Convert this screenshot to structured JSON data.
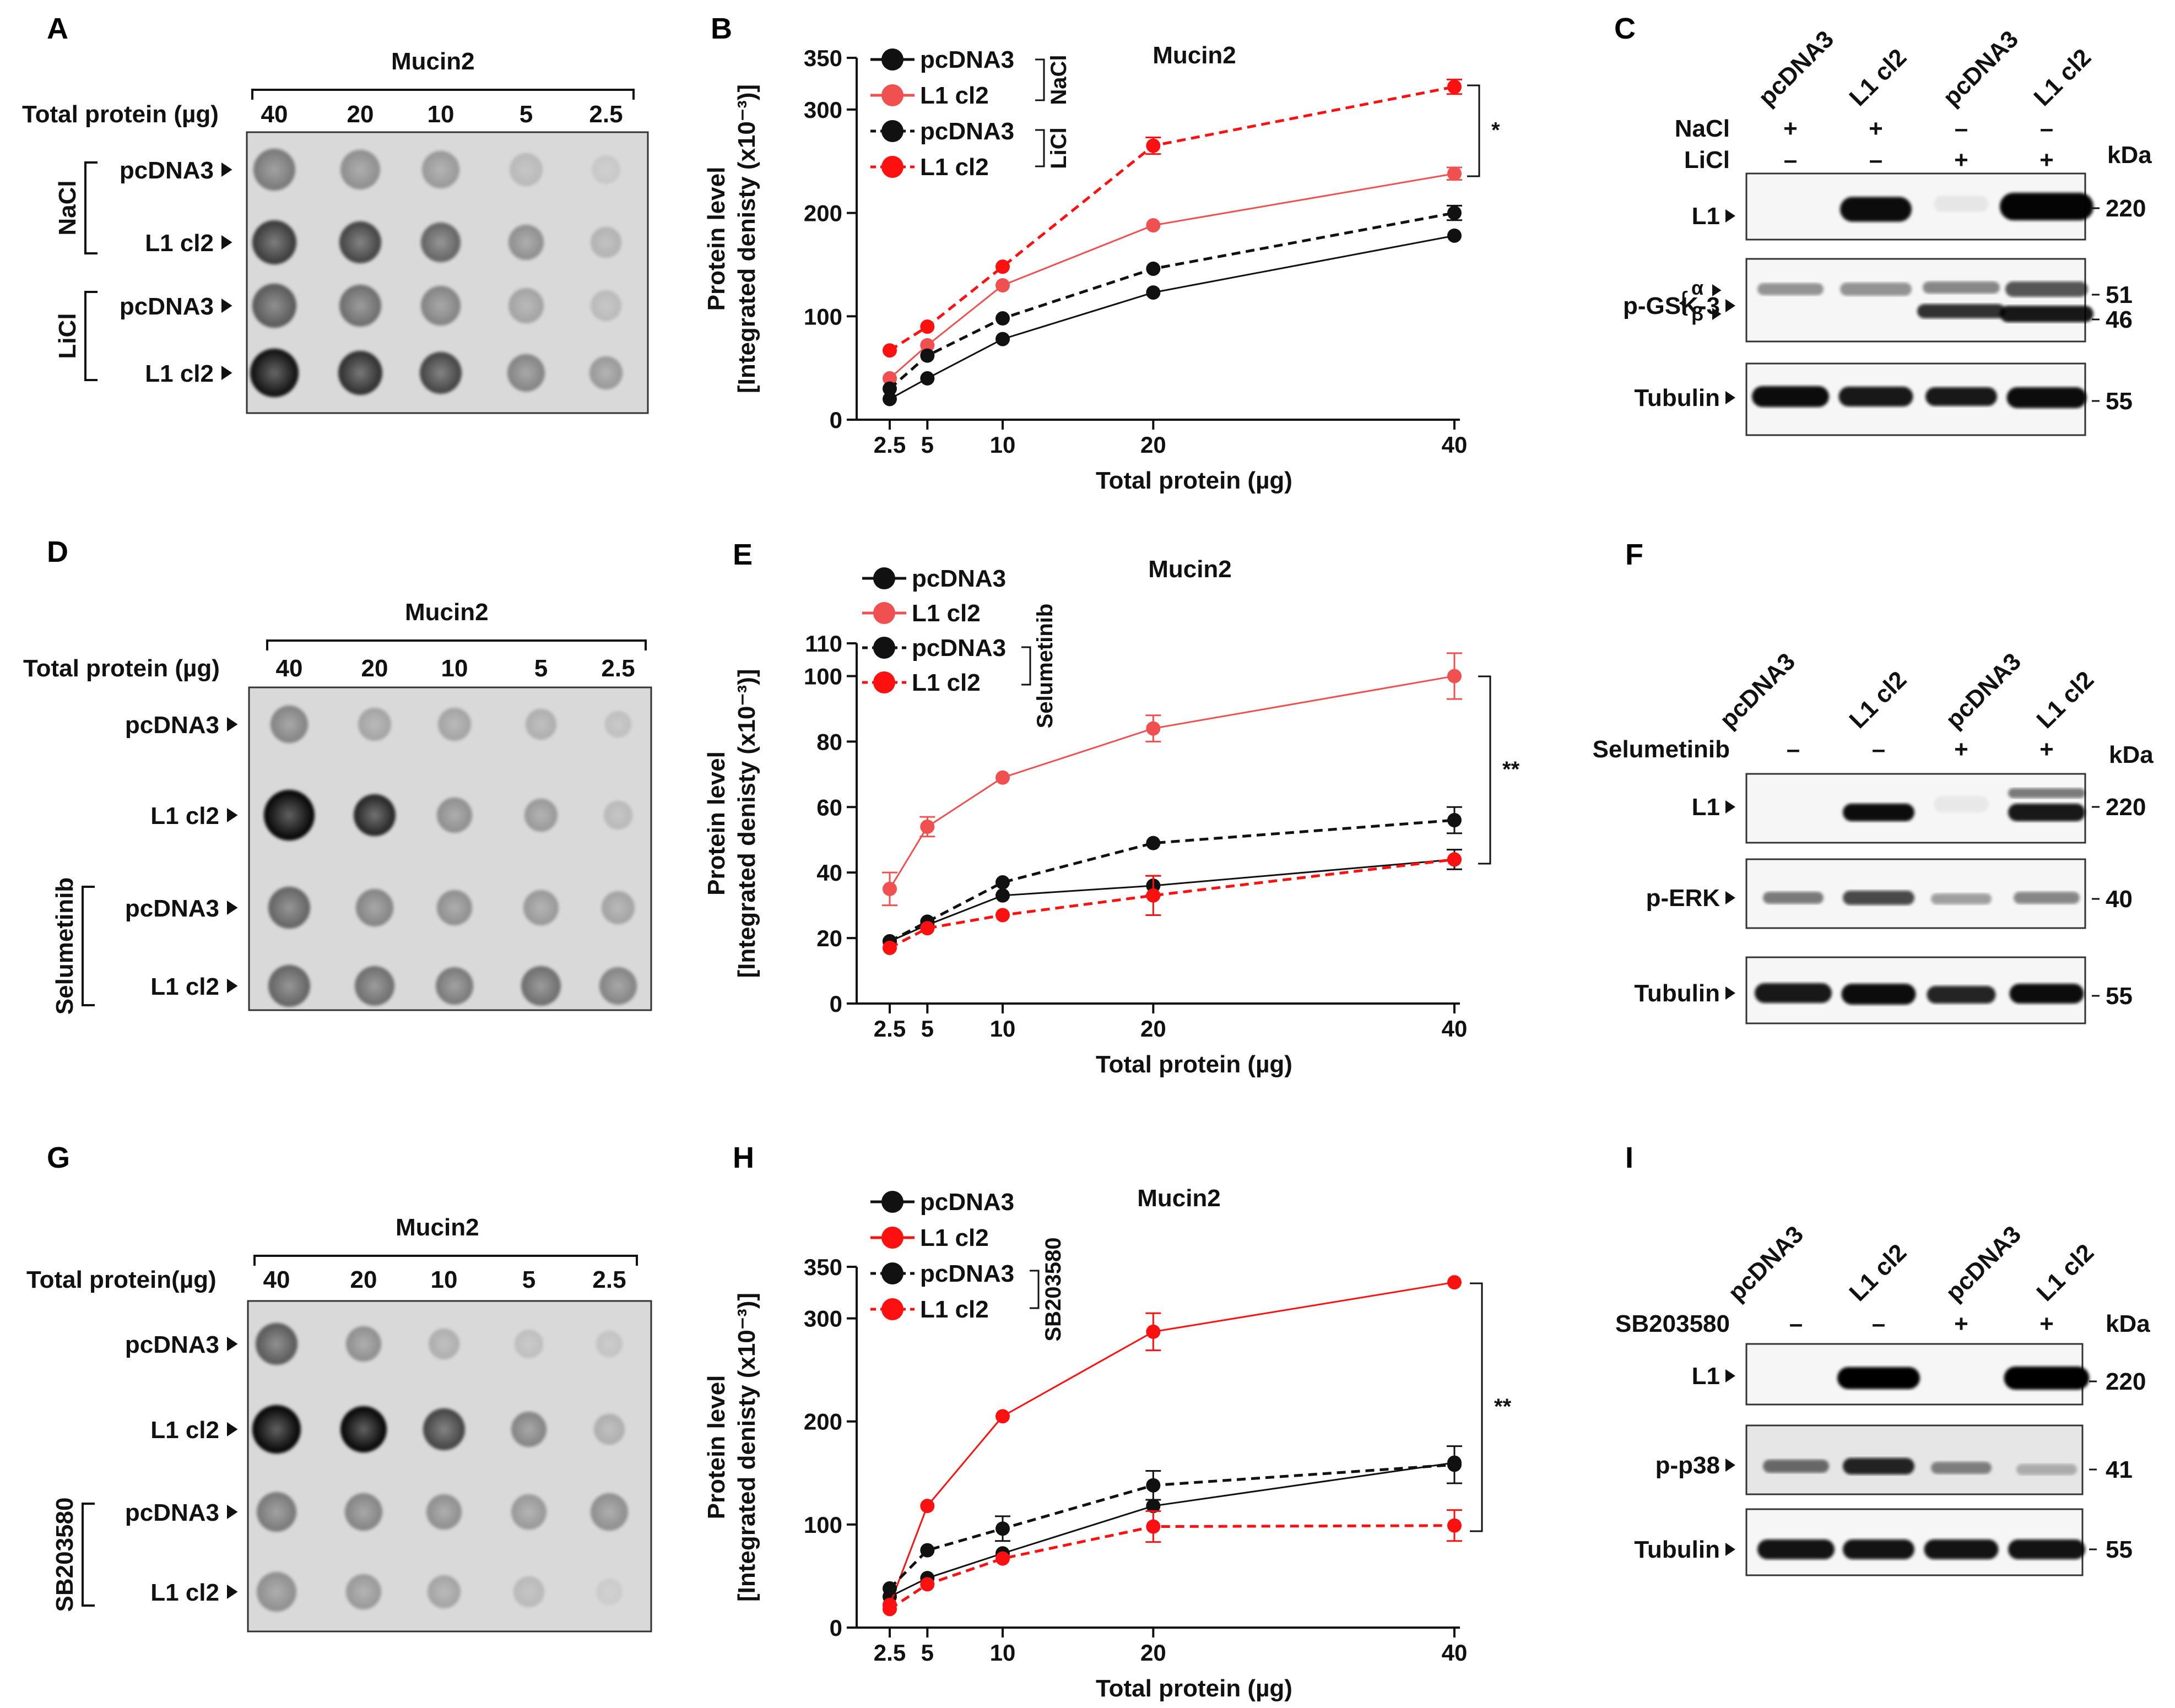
{
  "colors": {
    "black": "#111111",
    "red_light": "#f05050",
    "red": "#ff1010",
    "blot_bg": "#f6f6f6",
    "dot_bg": "#d9d9d9"
  },
  "protein_label": "Total protein (µg)",
  "protein_label_alt": "Total protein(µg)",
  "mucin": "Mucin2",
  "amounts": [
    "40",
    "20",
    "10",
    "5",
    "2.5"
  ],
  "markers": {
    "kda": "kDa",
    "plus": "+",
    "minus": "–",
    "bracket": "{",
    "alpha": "α",
    "beta": "β",
    "sig1": "*",
    "sig2": "**"
  },
  "panels": {
    "A": {
      "letter": "A",
      "rows": [
        "pcDNA3",
        "L1 cl2",
        "pcDNA3",
        "L1 cl2"
      ],
      "groups": [
        "NaCl",
        "LiCl"
      ]
    },
    "B": {
      "letter": "B",
      "title": "Mucin2",
      "group1": "NaCl",
      "group2": "LiCl"
    },
    "C": {
      "letter": "C",
      "lanes": [
        "pcDNA3",
        "L1 cl2",
        "pcDNA3",
        "L1 cl2"
      ],
      "treat1_label": "NaCl",
      "treat1": [
        "+",
        "+",
        "–",
        "–"
      ],
      "treat2_label": "LiCl",
      "treat2": [
        "–",
        "–",
        "+",
        "+"
      ],
      "bands": [
        "L1",
        "p-GSK-3",
        "Tubulin"
      ],
      "sizes": [
        "220",
        "51",
        "46",
        "55"
      ]
    },
    "D": {
      "letter": "D",
      "rows": [
        "pcDNA3",
        "L1 cl2",
        "pcDNA3",
        "L1 cl2"
      ],
      "group": "Selumetinib"
    },
    "E": {
      "letter": "E",
      "title": "Mucin2",
      "group": "Selumetinib"
    },
    "F": {
      "letter": "F",
      "lanes": [
        "pcDNA3",
        "L1 cl2",
        "pcDNA3",
        "L1 cl2"
      ],
      "treat_label": "Selumetinib",
      "treat": [
        "–",
        "–",
        "+",
        "+"
      ],
      "bands": [
        "L1",
        "p-ERK",
        "Tubulin"
      ],
      "sizes": [
        "220",
        "40",
        "55"
      ]
    },
    "G": {
      "letter": "G",
      "rows": [
        "pcDNA3",
        "L1 cl2",
        "pcDNA3",
        "L1 cl2"
      ],
      "group": "SB203580"
    },
    "H": {
      "letter": "H",
      "title": "Mucin2",
      "group": "SB203580"
    },
    "I": {
      "letter": "I",
      "lanes": [
        "pcDNA3",
        "L1 cl2",
        "pcDNA3",
        "L1 cl2"
      ],
      "treat_label": "SB203580",
      "treat": [
        "–",
        "–",
        "+",
        "+"
      ],
      "bands": [
        "L1",
        "p-p38",
        "Tubulin"
      ],
      "sizes": [
        "220",
        "41",
        "55"
      ]
    }
  },
  "chart_data": [
    {
      "panel": "B",
      "type": "line",
      "title": "Mucin2",
      "xlabel": "Total protein (µg)",
      "ylabel": "Protein level",
      "ylabel2": "[Integrated denisty (x10⁻³)]",
      "x": [
        2.5,
        5,
        10,
        20,
        40
      ],
      "xticks": [
        "2.5",
        "5",
        "10",
        "20",
        "40"
      ],
      "ylim": [
        0,
        350
      ],
      "yticks": [
        0,
        100,
        200,
        300,
        350
      ],
      "significance": "*",
      "series": [
        {
          "name": "pcDNA3",
          "group": "NaCl",
          "color": "#111111",
          "dashed": false,
          "values": [
            20,
            40,
            78,
            123,
            178
          ]
        },
        {
          "name": "L1 cl2",
          "group": "NaCl",
          "color": "#f05050",
          "dashed": false,
          "values": [
            40,
            72,
            130,
            188,
            238
          ]
        },
        {
          "name": "pcDNA3",
          "group": "LiCl",
          "color": "#111111",
          "dashed": true,
          "values": [
            30,
            62,
            98,
            146,
            200
          ]
        },
        {
          "name": "L1 cl2",
          "group": "LiCl",
          "color": "#ff1010",
          "dashed": true,
          "values": [
            67,
            90,
            148,
            265,
            322
          ]
        }
      ]
    },
    {
      "panel": "E",
      "type": "line",
      "title": "Mucin2",
      "xlabel": "Total protein (µg)",
      "ylabel": "Protein level",
      "ylabel2": "[Integrated denisty (x10⁻³)]",
      "x": [
        2.5,
        5,
        10,
        20,
        40
      ],
      "xticks": [
        "2.5",
        "5",
        "10",
        "20",
        "40"
      ],
      "ylim": [
        0,
        110
      ],
      "yticks": [
        0,
        20,
        40,
        60,
        80,
        100,
        110
      ],
      "significance": "**",
      "series": [
        {
          "name": "pcDNA3",
          "group": "",
          "color": "#111111",
          "dashed": false,
          "values": [
            19,
            24,
            33,
            36,
            44
          ]
        },
        {
          "name": "L1 cl2",
          "group": "",
          "color": "#f05050",
          "dashed": false,
          "values": [
            35,
            54,
            69,
            84,
            100
          ]
        },
        {
          "name": "pcDNA3",
          "group": "Selumetinib",
          "color": "#111111",
          "dashed": true,
          "values": [
            19,
            25,
            37,
            49,
            56
          ]
        },
        {
          "name": "L1 cl2",
          "group": "Selumetinib",
          "color": "#ff1010",
          "dashed": true,
          "values": [
            17,
            23,
            27,
            33,
            44
          ]
        }
      ]
    },
    {
      "panel": "H",
      "type": "line",
      "title": "Mucin2",
      "xlabel": "Total protein (µg)",
      "ylabel": "Protein level",
      "ylabel2": "[Integrated denisty (x10⁻³)]",
      "x": [
        2.5,
        5,
        10,
        20,
        40
      ],
      "xticks": [
        "2.5",
        "5",
        "10",
        "20",
        "40"
      ],
      "ylim": [
        0,
        350
      ],
      "yticks": [
        0,
        100,
        200,
        300,
        350
      ],
      "significance": "**",
      "series": [
        {
          "name": "pcDNA3",
          "group": "",
          "color": "#111111",
          "dashed": false,
          "values": [
            30,
            48,
            72,
            118,
            160
          ]
        },
        {
          "name": "L1 cl2",
          "group": "",
          "color": "#ff1010",
          "dashed": false,
          "values": [
            22,
            118,
            205,
            287,
            335
          ]
        },
        {
          "name": "pcDNA3",
          "group": "SB203580",
          "color": "#111111",
          "dashed": true,
          "values": [
            38,
            75,
            96,
            138,
            158
          ]
        },
        {
          "name": "L1 cl2",
          "group": "SB203580",
          "color": "#ff1010",
          "dashed": true,
          "values": [
            18,
            42,
            67,
            98,
            99
          ]
        }
      ]
    }
  ]
}
